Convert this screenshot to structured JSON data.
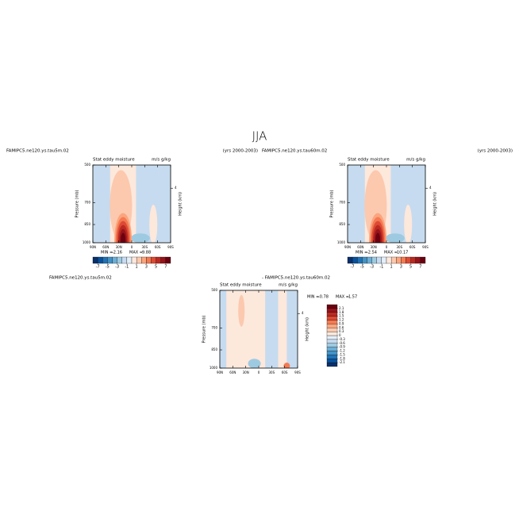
{
  "title": "JJA",
  "chart_data": [
    {
      "type": "contour",
      "case": "FAMIPC5.ne120.ys.tau5m.02",
      "period": "(yrs 2000-2003)",
      "subtitle": "Stat eddy moisture",
      "units": "m/s g/kg",
      "ylabel": "Pressure (mb)",
      "y2label": "Height (km)",
      "xlim": [
        90,
        -90
      ],
      "xticks": [
        {
          "value": 90,
          "label": "90N"
        },
        {
          "value": 60,
          "label": "60N"
        },
        {
          "value": 30,
          "label": "30N"
        },
        0,
        {
          "value": -30,
          "label": "30S"
        },
        {
          "value": -60,
          "label": "60S"
        },
        {
          "value": -90,
          "label": "90S"
        }
      ],
      "ylim": [
        1000,
        500
      ],
      "ylog": true,
      "yticks": [
        500,
        700,
        850,
        1000
      ],
      "y2lim": [
        0,
        5.7
      ],
      "y2ticks": [
        4
      ],
      "min_label": "MIN =",
      "min": -2.16,
      "max_label": "MAX =",
      "max": 9.88,
      "levels": [
        -7,
        -6,
        -5,
        -4,
        -3,
        -2,
        -1,
        0,
        1,
        2,
        3,
        4,
        5,
        6,
        7
      ],
      "level_ticks": [
        -7,
        -5,
        -3,
        -1,
        1,
        3,
        5,
        7
      ],
      "colors": [
        "#08306b",
        "#08519c",
        "#2171b5",
        "#4292c6",
        "#6baed6",
        "#9ecae1",
        "#c6dbef",
        "#e4eef9",
        "#fde8dc",
        "#fcc9ae",
        "#fba57e",
        "#f47a52",
        "#dd4a33",
        "#bb2a22",
        "#96141a",
        "#6b0010"
      ]
    },
    {
      "type": "contour",
      "case": "FAMIPC5.ne120.ys.tau60m.02",
      "period": "(yrs 2000-2003)",
      "subtitle": "Stat eddy moisture",
      "units": "m/s g/kg",
      "ylabel": "Pressure (mb)",
      "y2label": "Height (km)",
      "xlim": [
        90,
        -90
      ],
      "xticks": [
        {
          "value": 90,
          "label": "90N"
        },
        {
          "value": 60,
          "label": "60N"
        },
        {
          "value": 30,
          "label": "30N"
        },
        0,
        {
          "value": -30,
          "label": "30S"
        },
        {
          "value": -60,
          "label": "60S"
        },
        {
          "value": -90,
          "label": "90S"
        }
      ],
      "ylim": [
        1000,
        500
      ],
      "ylog": true,
      "yticks": [
        500,
        700,
        850,
        1000
      ],
      "y2lim": [
        0,
        5.7
      ],
      "y2ticks": [
        4
      ],
      "min_label": "MIN =",
      "min": -2.54,
      "max_label": "MAX =",
      "max": 10.17,
      "levels": [
        -7,
        -6,
        -5,
        -4,
        -3,
        -2,
        -1,
        0,
        1,
        2,
        3,
        4,
        5,
        6,
        7
      ],
      "level_ticks": [
        -7,
        -5,
        -3,
        -1,
        1,
        3,
        5,
        7
      ],
      "colors": [
        "#08306b",
        "#08519c",
        "#2171b5",
        "#4292c6",
        "#6baed6",
        "#9ecae1",
        "#c6dbef",
        "#e4eef9",
        "#fde8dc",
        "#fcc9ae",
        "#fba57e",
        "#f47a52",
        "#dd4a33",
        "#bb2a22",
        "#96141a",
        "#6b0010"
      ]
    },
    {
      "type": "contour",
      "case": "FAMIPC5.ne120.ys.tau5m.02",
      "case2": "- FAMIPC5.ne120.ys.tau60m.02",
      "subtitle": "Stat eddy moisture",
      "units": "m/s g/kg",
      "ylabel": "Pressure (mb)",
      "y2label": "Height (km)",
      "xlim": [
        90,
        -90
      ],
      "xticks": [
        {
          "value": 90,
          "label": "90N"
        },
        {
          "value": 60,
          "label": "60N"
        },
        {
          "value": 30,
          "label": "30N"
        },
        0,
        {
          "value": -30,
          "label": "30S"
        },
        {
          "value": -60,
          "label": "60S"
        },
        {
          "value": -90,
          "label": "90S"
        }
      ],
      "ylim": [
        1000,
        500
      ],
      "ylog": true,
      "yticks": [
        500,
        700,
        850,
        1000
      ],
      "y2lim": [
        0,
        5.7
      ],
      "y2ticks": [
        4
      ],
      "min_label": "MIN =",
      "min": -0.78,
      "max_label": "MAX =",
      "max": 1.57,
      "levels": [
        -2.1,
        -1.8,
        -1.5,
        -1.2,
        -0.9,
        -0.6,
        -0.3,
        0,
        0.3,
        0.6,
        0.9,
        1.2,
        1.5,
        1.8,
        2.1
      ],
      "level_ticks": [
        -2.1,
        -1.8,
        -1.5,
        -1.2,
        -0.9,
        -0.6,
        -0.3,
        0,
        0.3,
        0.6,
        0.9,
        1.2,
        1.5,
        1.8,
        2.1
      ],
      "colors": [
        "#08306b",
        "#08519c",
        "#2171b5",
        "#4292c6",
        "#6baed6",
        "#9ecae1",
        "#c6dbef",
        "#e4eef9",
        "#fde8dc",
        "#fcc9ae",
        "#fba57e",
        "#f47a52",
        "#dd4a33",
        "#bb2a22",
        "#96141a",
        "#6b0010"
      ]
    }
  ]
}
